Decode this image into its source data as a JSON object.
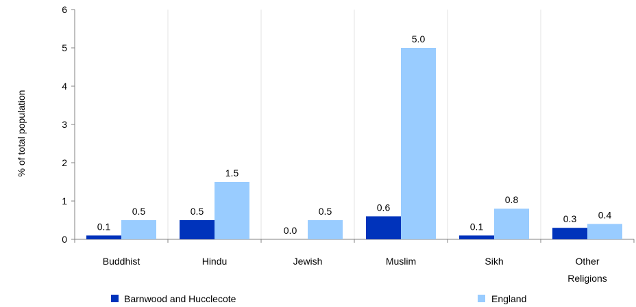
{
  "chart_data": {
    "type": "bar",
    "categories": [
      "Buddhist",
      "Hindu",
      "Jewish",
      "Muslim",
      "Sikh",
      "Other Religions"
    ],
    "category_lines": [
      [
        "Buddhist"
      ],
      [
        "Hindu"
      ],
      [
        "Jewish"
      ],
      [
        "Muslim"
      ],
      [
        "Sikh"
      ],
      [
        "Other",
        "Religions"
      ]
    ],
    "series": [
      {
        "name": "Barnwood and Hucclecote",
        "values": [
          0.1,
          0.5,
          0.0,
          0.6,
          0.1,
          0.3
        ],
        "labels": [
          "0.1",
          "0.5",
          "0.0",
          "0.6",
          "0.1",
          "0.3"
        ],
        "color": "#0033bb"
      },
      {
        "name": "England",
        "values": [
          0.5,
          1.5,
          0.5,
          5.0,
          0.8,
          0.4
        ],
        "labels": [
          "0.5",
          "1.5",
          "0.5",
          "5.0",
          "0.8",
          "0.4"
        ],
        "color": "#99ccff"
      }
    ],
    "xlabel": "",
    "ylabel": "% of total population",
    "ylim": [
      0,
      6
    ],
    "yticks": [
      "0",
      "1",
      "2",
      "3",
      "4",
      "5",
      "6"
    ],
    "grid": "vertical category separators",
    "legend_position": "bottom"
  }
}
